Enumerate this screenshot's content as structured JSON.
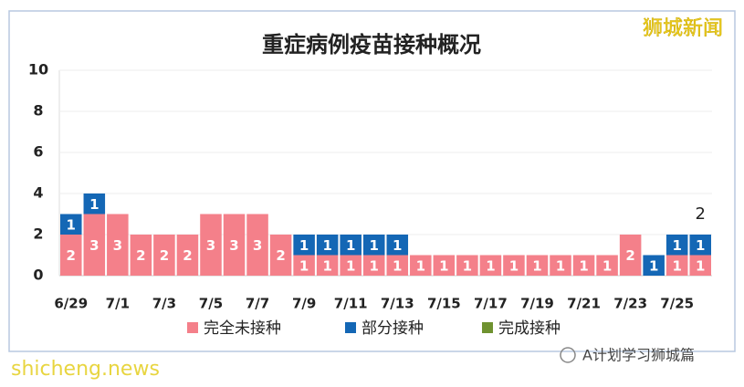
{
  "chart_data": {
    "type": "stacked_bar",
    "title": "重症病例疫苗接种概况",
    "categories": [
      "6/29",
      null,
      "7/1",
      null,
      "7/3",
      null,
      "7/5",
      null,
      "7/7",
      null,
      "7/9",
      null,
      "7/11",
      null,
      "7/13",
      null,
      "7/15",
      null,
      "7/17",
      null,
      "7/19",
      null,
      "7/21",
      null,
      "7/23",
      null,
      "7/25",
      null
    ],
    "series": [
      {
        "name": "完全未接种",
        "color": "#f4808a",
        "values": [
          2,
          3,
          3,
          2,
          2,
          2,
          3,
          3,
          3,
          2,
          1,
          1,
          1,
          1,
          1,
          1,
          1,
          1,
          1,
          1,
          1,
          1,
          1,
          1,
          2,
          0,
          1,
          1
        ]
      },
      {
        "name": "部分接种",
        "color": "#1467b5",
        "values": [
          1,
          1,
          0,
          0,
          0,
          0,
          0,
          0,
          0,
          0,
          1,
          1,
          1,
          1,
          1,
          0,
          0,
          0,
          0,
          0,
          0,
          0,
          0,
          0,
          0,
          1,
          1,
          1
        ]
      },
      {
        "name": "完成接种",
        "color": "#6f9230",
        "values": [
          0,
          0,
          0,
          0,
          0,
          0,
          0,
          0,
          0,
          0,
          0,
          0,
          0,
          0,
          0,
          0,
          0,
          0,
          0,
          0,
          0,
          0,
          0,
          0,
          0,
          0,
          0,
          0
        ]
      }
    ],
    "annotations": [
      {
        "text": "2"
      }
    ],
    "ylim": [
      0,
      10
    ],
    "yticks": [
      0,
      2,
      4,
      6,
      8,
      10
    ],
    "grid": true,
    "legend": "bottom"
  },
  "watermarks": {
    "top_right": "狮城新闻",
    "bottom_left": "shicheng.news",
    "bottom_right": "A计划学习狮城篇"
  }
}
